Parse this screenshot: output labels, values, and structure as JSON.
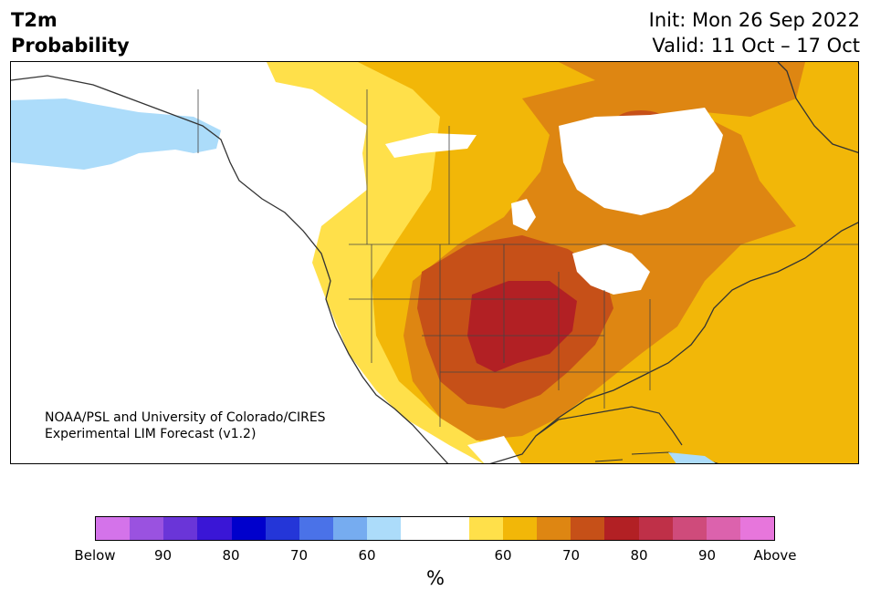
{
  "header": {
    "variable": "T2m",
    "product": "Probability",
    "init": "Init: Mon 26 Sep 2022",
    "valid": "Valid: 11 Oct – 17 Oct"
  },
  "credit": {
    "line1": "NOAA/PSL and University of Colorado/CIRES",
    "line2": "Experimental LIM Forecast (v1.2)"
  },
  "colorbar": {
    "colors": [
      "#d473ea",
      "#9a52e0",
      "#6a35d8",
      "#3a16d6",
      "#0000cc",
      "#2436d8",
      "#4a72e8",
      "#76acf0",
      "#acdcfa",
      "#ffffff",
      "#ffffff",
      "#ffe04a",
      "#f2b708",
      "#de8612",
      "#c65018",
      "#b22024",
      "#bf3048",
      "#cf4b7b",
      "#dc62ad",
      "#e776dc"
    ],
    "ticks": [
      "Below",
      "90",
      "80",
      "70",
      "60",
      "60",
      "70",
      "80",
      "90",
      "Above"
    ],
    "unit": "%"
  },
  "legend_meaning": {
    "cool_side": "Below",
    "warm_side": "Above"
  }
}
